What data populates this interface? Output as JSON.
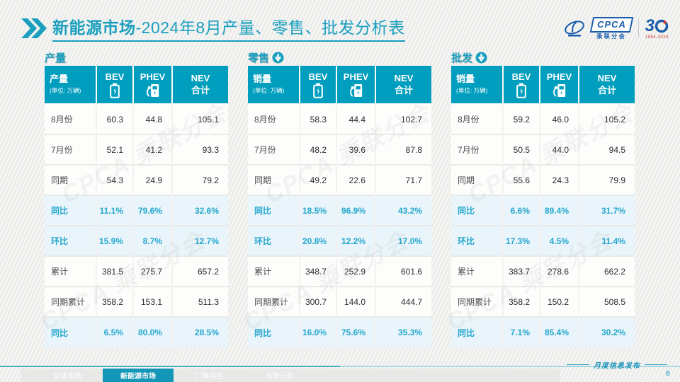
{
  "header": {
    "title_bold": "新能源市场",
    "title_rest": "-2024年8月产量、零售、批发分析表"
  },
  "logos": {
    "cpca": "CPCA",
    "cpca_sub": "乘联分会",
    "anniv_number": "3",
    "anniv_years": "1994-2024"
  },
  "watermark": "CPCA 乘联分会",
  "table_common": {
    "col_bev": "BEV",
    "col_phev": "PHEV",
    "col_nev_line1": "NEV",
    "col_nev_line2": "合计",
    "unit": "(单位: 万辆)"
  },
  "tables": [
    {
      "section_title": "产量",
      "corner_label": "产量",
      "arrow": false,
      "rows": [
        {
          "label": "8月份",
          "bev": "60.3",
          "phev": "44.8",
          "nev": "105.1",
          "highlight": false
        },
        {
          "label": "7月份",
          "bev": "52.1",
          "phev": "41.2",
          "nev": "93.3",
          "highlight": false
        },
        {
          "label": "同期",
          "bev": "54.3",
          "phev": "24.9",
          "nev": "79.2",
          "highlight": false
        },
        {
          "label": "同比",
          "bev": "11.1%",
          "phev": "79.6%",
          "nev": "32.6%",
          "highlight": true
        },
        {
          "label": "环比",
          "bev": "15.9%",
          "phev": "8.7%",
          "nev": "12.7%",
          "highlight": true
        },
        {
          "label": "累计",
          "bev": "381.5",
          "phev": "275.7",
          "nev": "657.2",
          "highlight": false
        },
        {
          "label": "同期累计",
          "bev": "358.2",
          "phev": "153.1",
          "nev": "511.3",
          "highlight": false
        },
        {
          "label": "同比",
          "bev": "6.5%",
          "phev": "80.0%",
          "nev": "28.5%",
          "highlight": true
        }
      ]
    },
    {
      "section_title": "零售",
      "corner_label": "销量",
      "arrow": true,
      "rows": [
        {
          "label": "8月份",
          "bev": "58.3",
          "phev": "44.4",
          "nev": "102.7",
          "highlight": false
        },
        {
          "label": "7月份",
          "bev": "48.2",
          "phev": "39.6",
          "nev": "87.8",
          "highlight": false
        },
        {
          "label": "同期",
          "bev": "49.2",
          "phev": "22.6",
          "nev": "71.7",
          "highlight": false
        },
        {
          "label": "同比",
          "bev": "18.5%",
          "phev": "96.9%",
          "nev": "43.2%",
          "highlight": true
        },
        {
          "label": "环比",
          "bev": "20.8%",
          "phev": "12.2%",
          "nev": "17.0%",
          "highlight": true
        },
        {
          "label": "累计",
          "bev": "348.7",
          "phev": "252.9",
          "nev": "601.6",
          "highlight": false
        },
        {
          "label": "同期累计",
          "bev": "300.7",
          "phev": "144.0",
          "nev": "444.7",
          "highlight": false
        },
        {
          "label": "同比",
          "bev": "16.0%",
          "phev": "75.6%",
          "nev": "35.3%",
          "highlight": true
        }
      ]
    },
    {
      "section_title": "批发",
      "corner_label": "销量",
      "arrow": true,
      "rows": [
        {
          "label": "8月份",
          "bev": "59.2",
          "phev": "46.0",
          "nev": "105.2",
          "highlight": false
        },
        {
          "label": "7月份",
          "bev": "50.5",
          "phev": "44.0",
          "nev": "94.5",
          "highlight": false
        },
        {
          "label": "同期",
          "bev": "55.6",
          "phev": "24.3",
          "nev": "79.9",
          "highlight": false
        },
        {
          "label": "同比",
          "bev": "6.6%",
          "phev": "89.4%",
          "nev": "31.7%",
          "highlight": true
        },
        {
          "label": "环比",
          "bev": "17.3%",
          "phev": "4.5%",
          "nev": "11.4%",
          "highlight": true
        },
        {
          "label": "累计",
          "bev": "383.7",
          "phev": "278.6",
          "nev": "662.2",
          "highlight": false
        },
        {
          "label": "同期累计",
          "bev": "358.2",
          "phev": "150.2",
          "nev": "508.5",
          "highlight": false
        },
        {
          "label": "同比",
          "bev": "7.1%",
          "phev": "85.4%",
          "nev": "30.2%",
          "highlight": true
        }
      ]
    }
  ],
  "footer": {
    "tabs": [
      {
        "label": "总体市场",
        "active": false
      },
      {
        "label": "新能源市场",
        "active": true
      },
      {
        "label": "厂商排名",
        "active": false
      },
      {
        "label": "市场分析",
        "active": false
      }
    ],
    "note": "月度信息发布",
    "page": "6"
  },
  "colors": {
    "teal": "#009EBE",
    "teal_text": "#1A9FBE",
    "highlight_bg": "#E9F5FA",
    "highlight_text": "#25A7CE",
    "logo_blue": "#1A5DAB",
    "logo_red": "#D63A2F"
  }
}
